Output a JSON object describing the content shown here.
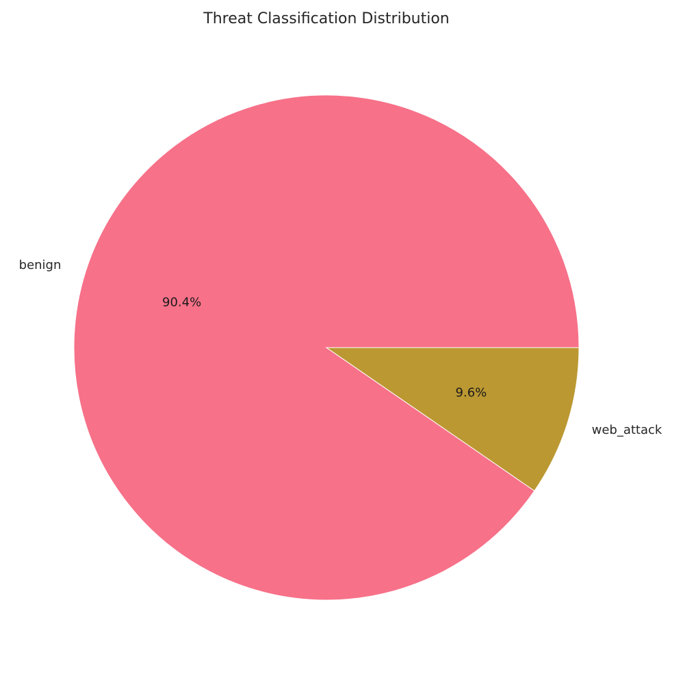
{
  "chart_data": {
    "type": "pie",
    "title": "Threat Classification Distribution",
    "slices": [
      {
        "label": "benign",
        "value": 90.4,
        "pct_label": "90.4%",
        "color": "#f77189"
      },
      {
        "label": "web_attack",
        "value": 9.6,
        "pct_label": "9.6%",
        "color": "#bb9832"
      }
    ],
    "start_angle_deg": 0,
    "direction": "counterclockwise"
  }
}
